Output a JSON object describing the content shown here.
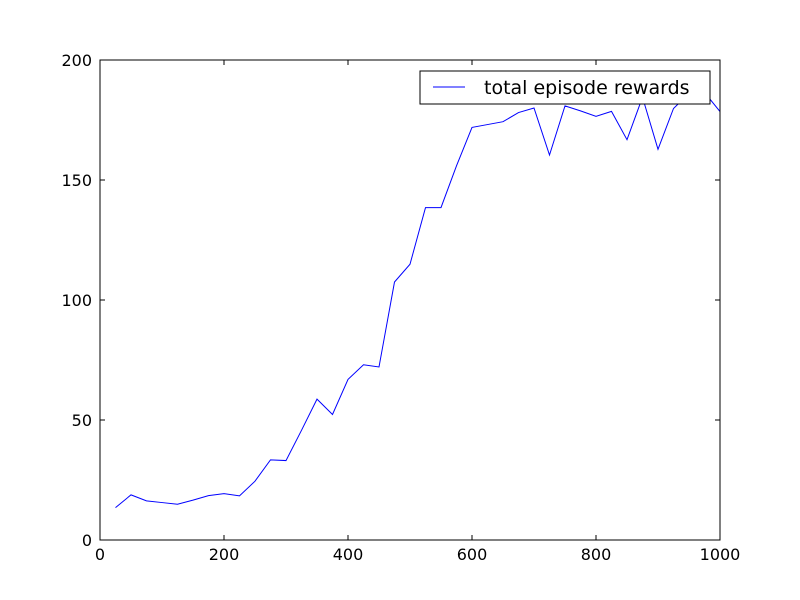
{
  "chart_data": {
    "type": "line",
    "title": "",
    "xlabel": "",
    "ylabel": "",
    "xlim": [
      0,
      1000
    ],
    "ylim": [
      0,
      200
    ],
    "x_ticks": [
      0,
      200,
      400,
      600,
      800,
      1000
    ],
    "y_ticks": [
      0,
      50,
      100,
      150,
      200
    ],
    "grid": false,
    "legend": {
      "placement": "top-right"
    },
    "series": [
      {
        "name": "total episode rewards",
        "color": "#0000ff",
        "x": [
          25,
          50,
          75,
          100,
          125,
          150,
          175,
          200,
          225,
          250,
          275,
          300,
          325,
          350,
          375,
          400,
          425,
          450,
          475,
          500,
          525,
          550,
          575,
          600,
          625,
          650,
          675,
          700,
          725,
          750,
          775,
          800,
          825,
          850,
          875,
          900,
          925,
          950,
          975,
          1000
        ],
        "y": [
          13.5,
          18.8,
          16.3,
          15.6,
          14.9,
          16.6,
          18.5,
          19.3,
          18.4,
          24.5,
          33.4,
          33.1,
          45.7,
          58.7,
          52.3,
          66.9,
          73.0,
          72.1,
          107.5,
          114.9,
          138.5,
          138.5,
          155.9,
          171.9,
          173.1,
          174.3,
          178.1,
          180.0,
          160.4,
          180.9,
          178.8,
          176.5,
          178.6,
          166.8,
          184.5,
          162.8,
          179.8,
          186.1,
          186.5,
          178.5
        ]
      }
    ]
  }
}
